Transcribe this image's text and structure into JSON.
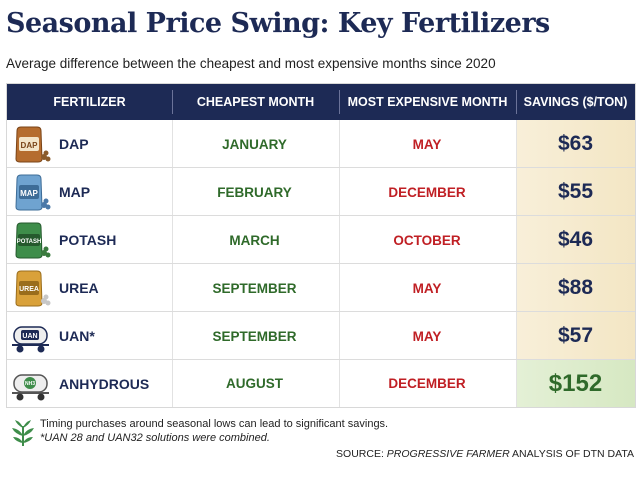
{
  "title": "Seasonal Price Swing: Key Fertilizers",
  "subtitle": "Average difference between the cheapest and most expensive months since 2020",
  "table": {
    "headers": {
      "fertilizer": "FERTILIZER",
      "cheapest": "CHEAPEST MONTH",
      "expensive": "MOST EXPENSIVE MONTH",
      "savings": "SAVINGS ($/TON)"
    },
    "rows": [
      {
        "fertilizer": "DAP",
        "icon_label": "DAP",
        "icon": "fertilizer-bag-icon",
        "cheapest": "JANUARY",
        "expensive": "MAY",
        "savings": "$63"
      },
      {
        "fertilizer": "MAP",
        "icon_label": "MAP",
        "icon": "fertilizer-bag-icon",
        "cheapest": "FEBRUARY",
        "expensive": "DECEMBER",
        "savings": "$55"
      },
      {
        "fertilizer": "POTASH",
        "icon_label": "POTASH",
        "icon": "fertilizer-bag-icon",
        "cheapest": "MARCH",
        "expensive": "OCTOBER",
        "savings": "$46"
      },
      {
        "fertilizer": "UREA",
        "icon_label": "UREA",
        "icon": "fertilizer-bag-icon",
        "cheapest": "SEPTEMBER",
        "expensive": "MAY",
        "savings": "$88"
      },
      {
        "fertilizer": "UAN*",
        "icon_label": "UAN",
        "icon": "tank-trailer-icon",
        "cheapest": "SEPTEMBER",
        "expensive": "MAY",
        "savings": "$57"
      },
      {
        "fertilizer": "ANHYDROUS",
        "icon_label": "NH3",
        "icon": "tank-trailer-icon",
        "cheapest": "AUGUST",
        "expensive": "DECEMBER",
        "savings": "$152"
      }
    ]
  },
  "colors": {
    "navy": "#1d2a55",
    "green": "#2f6a2a",
    "red": "#c01f24",
    "dap_bag": "#b56c2e",
    "map_bag": "#6fa3d0",
    "potash_bag": "#3e8d4a",
    "urea_bag": "#d9a13a"
  },
  "footnotes": {
    "note1": "Timing purchases around seasonal lows can lead to significant savings.",
    "note2": "*UAN 28 and UAN32 solutions were combined.",
    "source_prefix": "SOURCE: ",
    "source_pub": "PROGRESSIVE FARMER",
    "source_suffix": " ANALYSIS OF DTN DATA"
  }
}
